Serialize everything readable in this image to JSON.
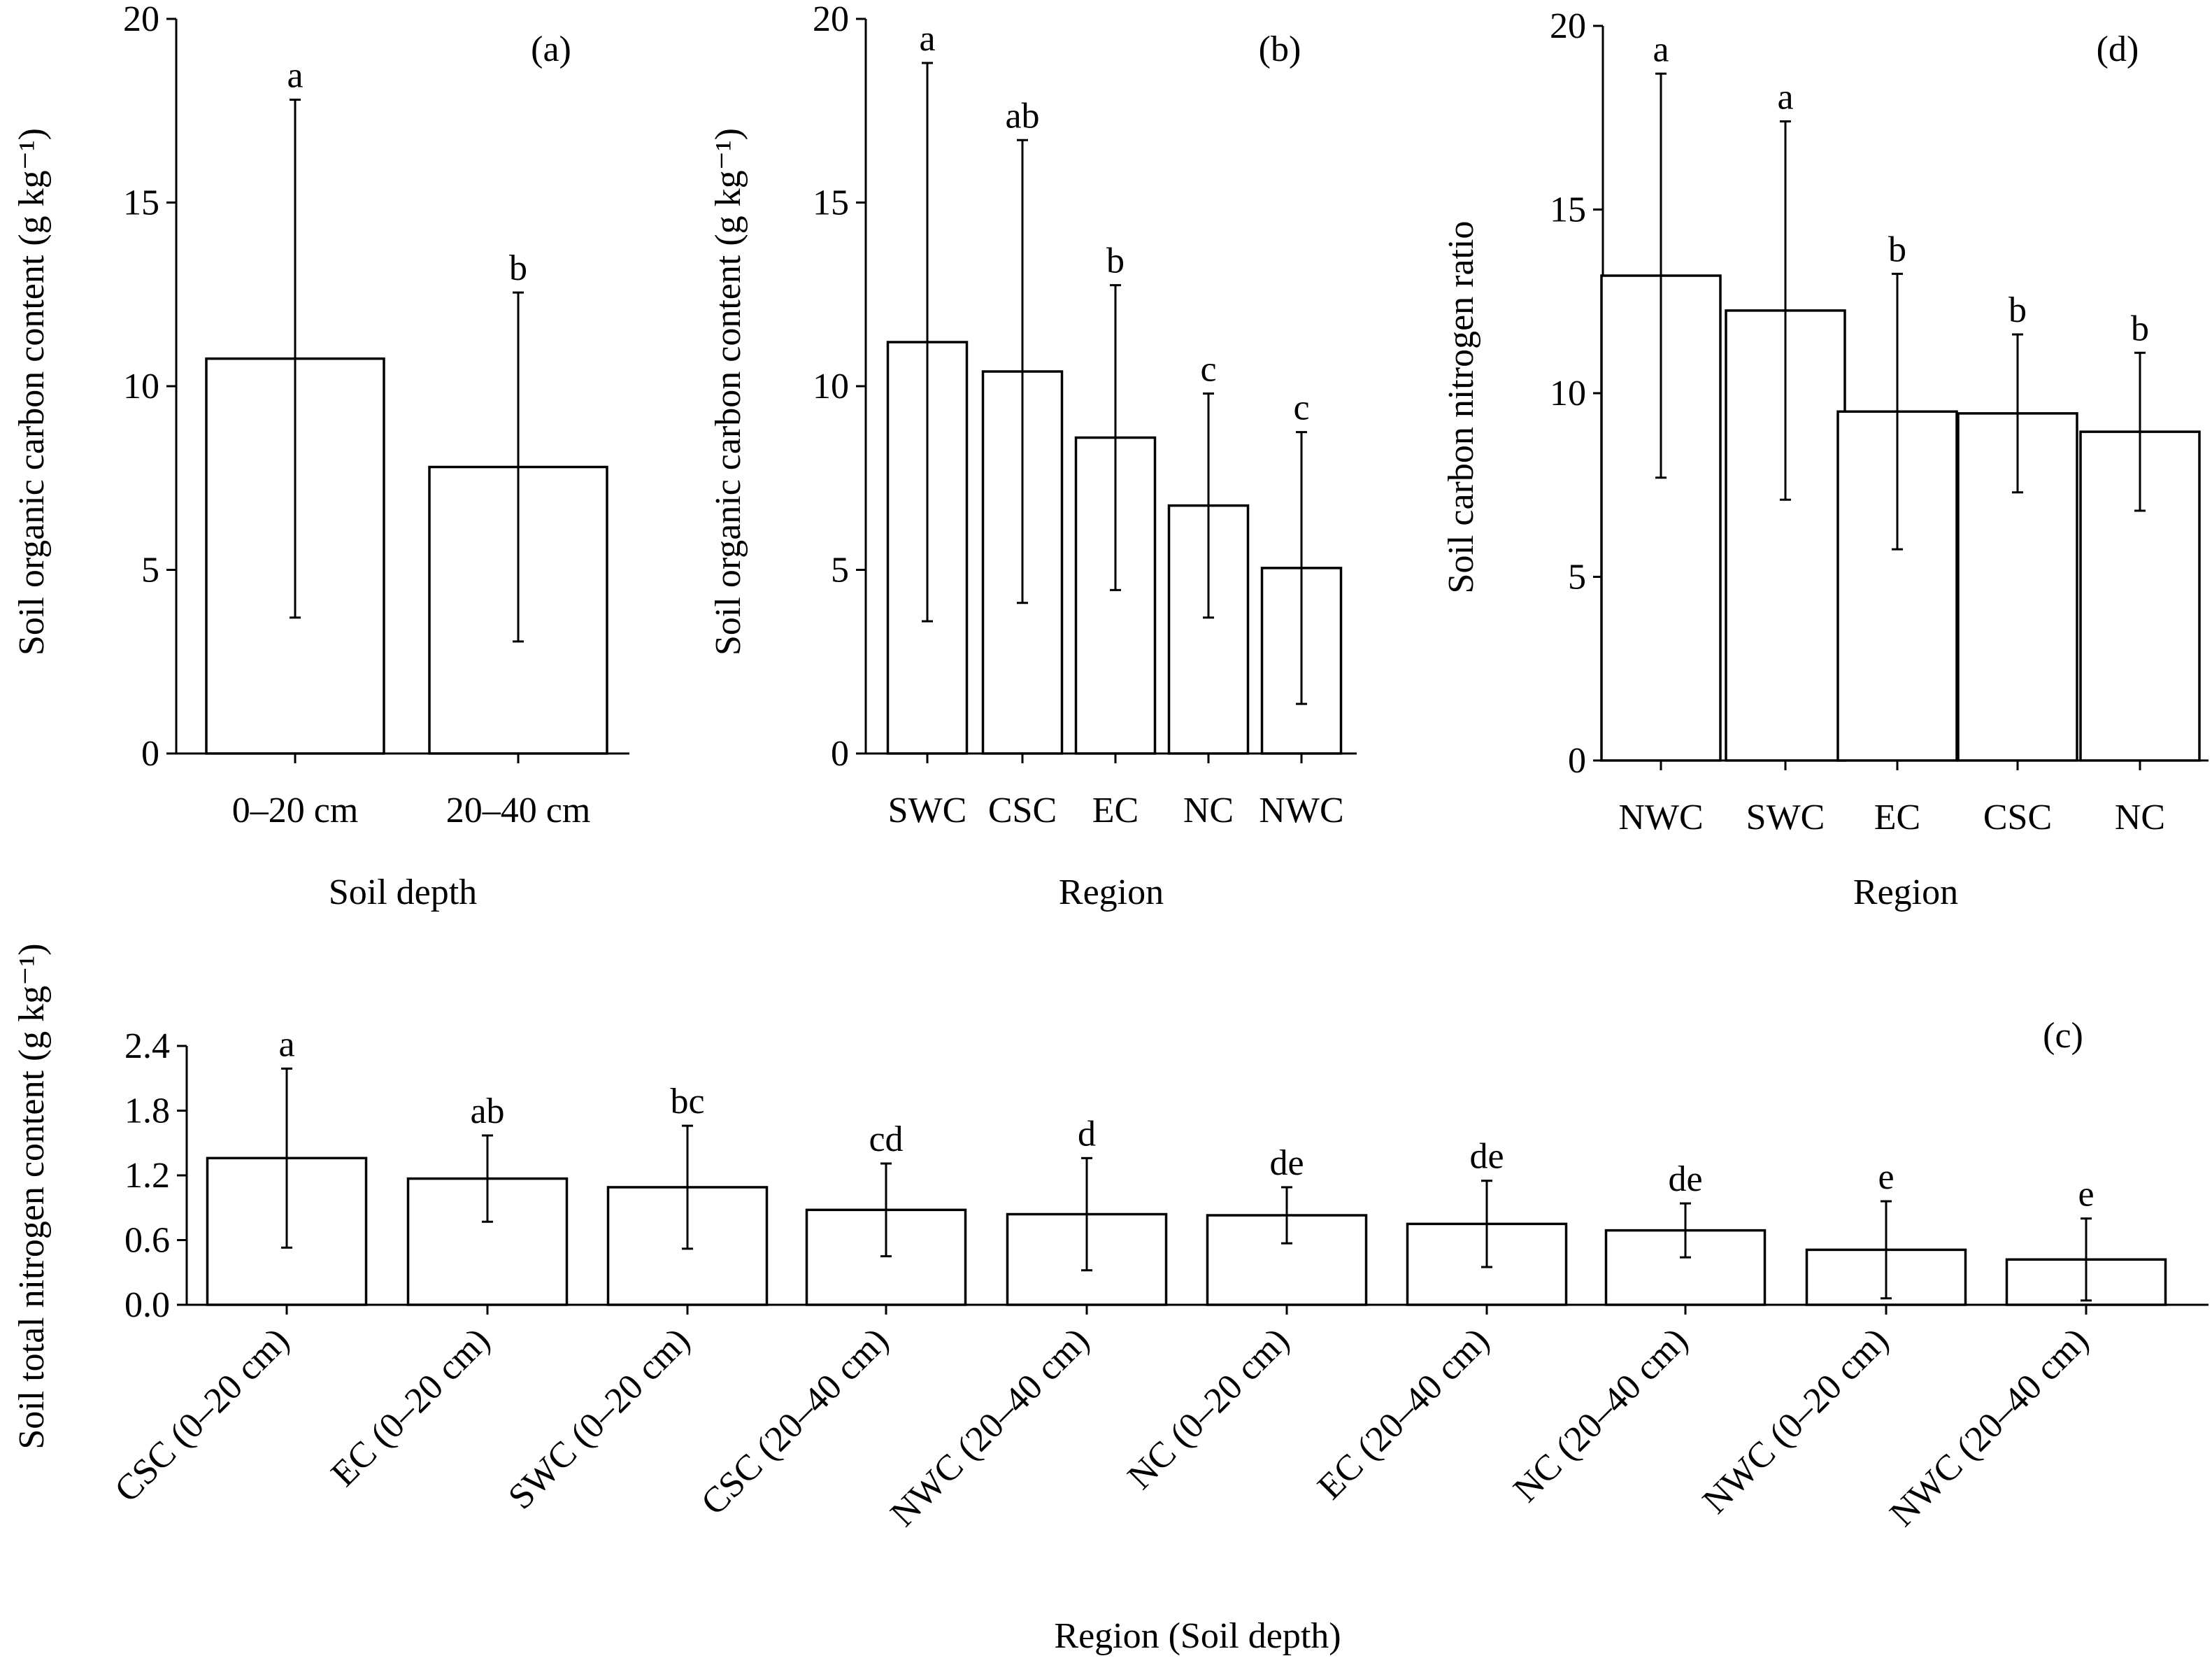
{
  "chart_data": [
    {
      "id": "a",
      "type": "bar",
      "panel_label": "(a)",
      "xlabel": "Soil depth",
      "ylabel": "Soil organic carbon content (g kg⁻¹)",
      "ylim": [
        0,
        20
      ],
      "yticks": [
        "0",
        "5",
        "10",
        "15",
        "20"
      ],
      "categories": [
        "0–20 cm",
        "20–40 cm"
      ],
      "values": [
        10.75,
        7.8
      ],
      "errors": [
        7.05,
        4.75
      ],
      "letters": [
        "a",
        "b"
      ],
      "grid": false
    },
    {
      "id": "b",
      "type": "bar",
      "panel_label": "(b)",
      "xlabel": "Region",
      "ylabel": "Soil organic carbon content (g kg⁻¹)",
      "ylim": [
        0,
        20
      ],
      "yticks": [
        "0",
        "5",
        "10",
        "15",
        "20"
      ],
      "categories": [
        "SWC",
        "CSC",
        "EC",
        "NC",
        "NWC"
      ],
      "values": [
        11.2,
        10.4,
        8.6,
        6.75,
        5.05
      ],
      "errors": [
        7.6,
        6.3,
        4.15,
        3.05,
        3.7
      ],
      "letters": [
        "a",
        "ab",
        "b",
        "c",
        "c"
      ],
      "grid": false
    },
    {
      "id": "d",
      "type": "bar",
      "panel_label": "(d)",
      "xlabel": "Region",
      "ylabel": "Soil carbon nitrogen ratio",
      "ylim": [
        0,
        20
      ],
      "yticks": [
        "0",
        "5",
        "10",
        "15",
        "20"
      ],
      "categories": [
        "NWC",
        "SWC",
        "EC",
        "CSC",
        "NC"
      ],
      "values": [
        13.2,
        12.25,
        9.5,
        9.45,
        8.95
      ],
      "errors": [
        5.5,
        5.15,
        3.75,
        2.15,
        2.15
      ],
      "letters": [
        "a",
        "a",
        "b",
        "b",
        "b"
      ],
      "grid": false
    },
    {
      "id": "c",
      "type": "bar",
      "panel_label": "(c)",
      "xlabel": "Region (Soil depth)",
      "ylabel": "Soil total nitrogen content (g kg⁻¹)",
      "ylim": [
        0,
        2.4
      ],
      "yticks": [
        "0.0",
        "0.6",
        "1.2",
        "1.8",
        "2.4"
      ],
      "categories": [
        "CSC (0–20 cm)",
        "EC (0–20 cm)",
        "SWC (0–20 cm)",
        "CSC (20–40 cm)",
        "NWC (20–40 cm)",
        "NC (0–20 cm)",
        "EC (20–40 cm)",
        "NC (20–40 cm)",
        "NWC (0–20 cm)",
        "NWC (20–40 cm)"
      ],
      "values": [
        1.36,
        1.17,
        1.09,
        0.88,
        0.84,
        0.83,
        0.75,
        0.69,
        0.51,
        0.42
      ],
      "errors": [
        0.83,
        0.4,
        0.57,
        0.43,
        0.52,
        0.26,
        0.4,
        0.25,
        0.45,
        0.38
      ],
      "letters": [
        "a",
        "ab",
        "bc",
        "cd",
        "d",
        "de",
        "de",
        "de",
        "e",
        "e"
      ],
      "grid": false
    }
  ]
}
